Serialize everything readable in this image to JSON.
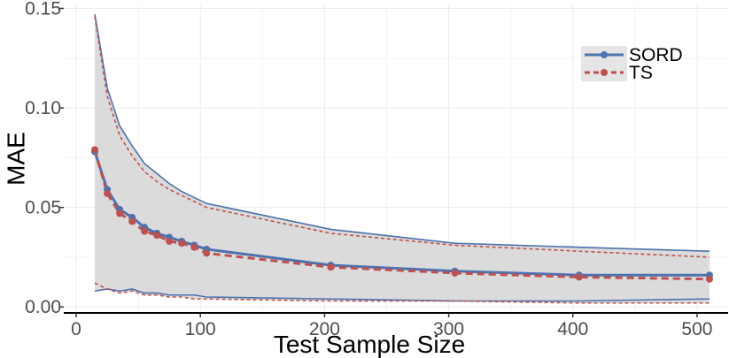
{
  "chart_data": {
    "type": "line",
    "xlabel": "Test Sample Size",
    "ylabel": "MAE",
    "xlim": [
      -10,
      525
    ],
    "ylim": [
      -0.003,
      0.152
    ],
    "xticks": [
      0,
      100,
      200,
      300,
      400,
      500
    ],
    "xtick_labels": [
      "0",
      "100",
      "200",
      "300",
      "400",
      "500"
    ],
    "yticks": [
      0.0,
      0.05,
      0.1,
      0.15
    ],
    "ytick_labels": [
      "0.00",
      "0.05",
      "0.10",
      "0.15"
    ],
    "grid": true,
    "legend_position": "top-right",
    "band_color": "#d9d9d9",
    "series": [
      {
        "name": "SORD",
        "color": "#4c72b0",
        "style": "solid",
        "x": [
          15,
          25,
          35,
          45,
          55,
          65,
          75,
          85,
          95,
          105,
          205,
          305,
          405,
          510
        ],
        "y": [
          0.078,
          0.059,
          0.049,
          0.045,
          0.04,
          0.037,
          0.035,
          0.033,
          0.031,
          0.029,
          0.021,
          0.018,
          0.016,
          0.016
        ],
        "upper": [
          0.147,
          0.11,
          0.091,
          0.081,
          0.072,
          0.067,
          0.062,
          0.058,
          0.055,
          0.052,
          0.039,
          0.032,
          0.03,
          0.028
        ],
        "lower": [
          0.008,
          0.009,
          0.008,
          0.009,
          0.007,
          0.007,
          0.006,
          0.006,
          0.006,
          0.005,
          0.004,
          0.003,
          0.003,
          0.004
        ]
      },
      {
        "name": "TS",
        "color": "#c0504d",
        "style": "dashed",
        "x": [
          15,
          25,
          35,
          45,
          55,
          65,
          75,
          85,
          95,
          105,
          205,
          305,
          405,
          510
        ],
        "y": [
          0.079,
          0.057,
          0.047,
          0.043,
          0.038,
          0.036,
          0.033,
          0.032,
          0.03,
          0.027,
          0.02,
          0.017,
          0.015,
          0.014
        ],
        "upper": [
          0.146,
          0.106,
          0.086,
          0.076,
          0.068,
          0.063,
          0.059,
          0.056,
          0.053,
          0.05,
          0.037,
          0.031,
          0.028,
          0.025
        ],
        "lower": [
          0.012,
          0.009,
          0.007,
          0.008,
          0.006,
          0.006,
          0.005,
          0.005,
          0.004,
          0.004,
          0.003,
          0.003,
          0.002,
          0.002
        ]
      }
    ]
  }
}
